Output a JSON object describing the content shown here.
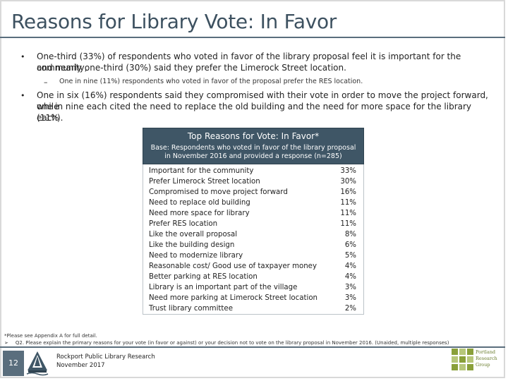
{
  "title": "Reasons for Library Vote: In Favor",
  "bullets": {
    "b1": {
      "marker": "•",
      "line1": "One-third (33%) of respondents who voted in favor of the library proposal feel it is important for the community,",
      "line2": "and nearly one-third (30%) said they prefer the Limerock Street location.",
      "sub_marker": "–",
      "sub": "One in nine (11%) respondents who voted in favor of the proposal prefer the RES location."
    },
    "b2": {
      "marker": "•",
      "line1": "One in six (16%) respondents said they compromised with their vote in order to move the project forward, while",
      "line2": "one in nine each cited the need to replace the old building and the need for more space for the library (11%",
      "line3": "each)."
    }
  },
  "table": {
    "title": "Top Reasons for Vote: In Favor*",
    "base_line1": "Base: Respondents who voted in favor of the library proposal",
    "base_line2": "in November 2016 and provided a response (n=285)",
    "rows": [
      {
        "label": "Important for the community",
        "value": "33%"
      },
      {
        "label": "Prefer Limerock Street location",
        "value": "30%"
      },
      {
        "label": "Compromised to move project forward",
        "value": "16%"
      },
      {
        "label": "Need to replace old building",
        "value": "11%"
      },
      {
        "label": "Need more space for library",
        "value": "11%"
      },
      {
        "label": "Prefer RES location",
        "value": "11%"
      },
      {
        "label": "Like the overall proposal",
        "value": "8%"
      },
      {
        "label": "Like the building design",
        "value": "6%"
      },
      {
        "label": "Need to modernize library",
        "value": "5%"
      },
      {
        "label": "Reasonable cost/ Good use of taxpayer money",
        "value": "4%"
      },
      {
        "label": "Better parking at RES location",
        "value": "4%"
      },
      {
        "label": "Library is an important part of the village",
        "value": "3%"
      },
      {
        "label": "Need more parking at Limerock Street location",
        "value": "3%"
      },
      {
        "label": "Trust library committee",
        "value": "2%"
      }
    ]
  },
  "footnote": "*Please see Appendix A for full detail.",
  "question_marker": "➢",
  "question": "Q2. Please explain the primary reasons for your vote (in favor or against) or your decision not to vote on the library proposal in November 2016. (Unaided, multiple responses)",
  "footer": {
    "page_number": "12",
    "line1": "Rockport Public Library Research",
    "line2": "November 2017",
    "right_logo_lines": [
      "Portland",
      "Research",
      "Group"
    ]
  },
  "colors": {
    "title": "#3d5160",
    "header_bg": "#3f5666",
    "rule": "#5a6e7d",
    "logo_green": "#8aa03a"
  }
}
